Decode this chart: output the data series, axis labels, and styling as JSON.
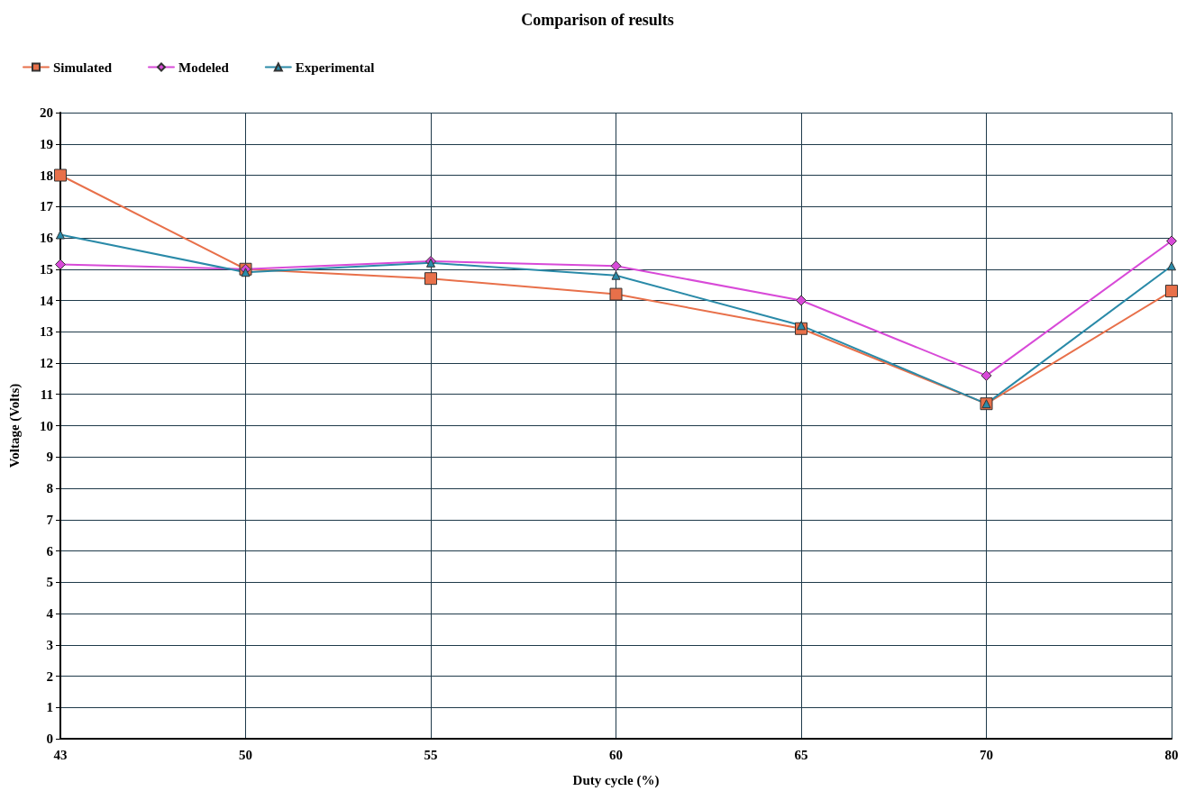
{
  "chart_data": {
    "type": "line",
    "title": "Comparison of results",
    "xlabel": "Duty cycle (%)",
    "ylabel": "Voltage (Volts)",
    "categories": [
      "43",
      "50",
      "55",
      "60",
      "65",
      "70",
      "80"
    ],
    "series": [
      {
        "name": "Simulated",
        "color": "#e8704a",
        "marker": "square",
        "values": [
          18.0,
          15.0,
          14.7,
          14.2,
          13.1,
          10.7,
          14.3
        ]
      },
      {
        "name": "Modeled",
        "color": "#d84ad8",
        "marker": "diamond",
        "values": [
          15.15,
          15.0,
          15.25,
          15.1,
          14.0,
          11.6,
          15.9
        ]
      },
      {
        "name": "Experimental",
        "color": "#2a8aa8",
        "marker": "triangle",
        "values": [
          16.1,
          14.9,
          15.2,
          14.8,
          13.2,
          10.7,
          15.1
        ]
      }
    ],
    "ylim": [
      0,
      20
    ],
    "yticks": [
      0,
      1,
      2,
      3,
      4,
      5,
      6,
      7,
      8,
      9,
      10,
      11,
      12,
      13,
      14,
      15,
      16,
      17,
      18,
      19,
      20
    ],
    "grid": true,
    "legend": "top left",
    "line_style": "solid"
  }
}
